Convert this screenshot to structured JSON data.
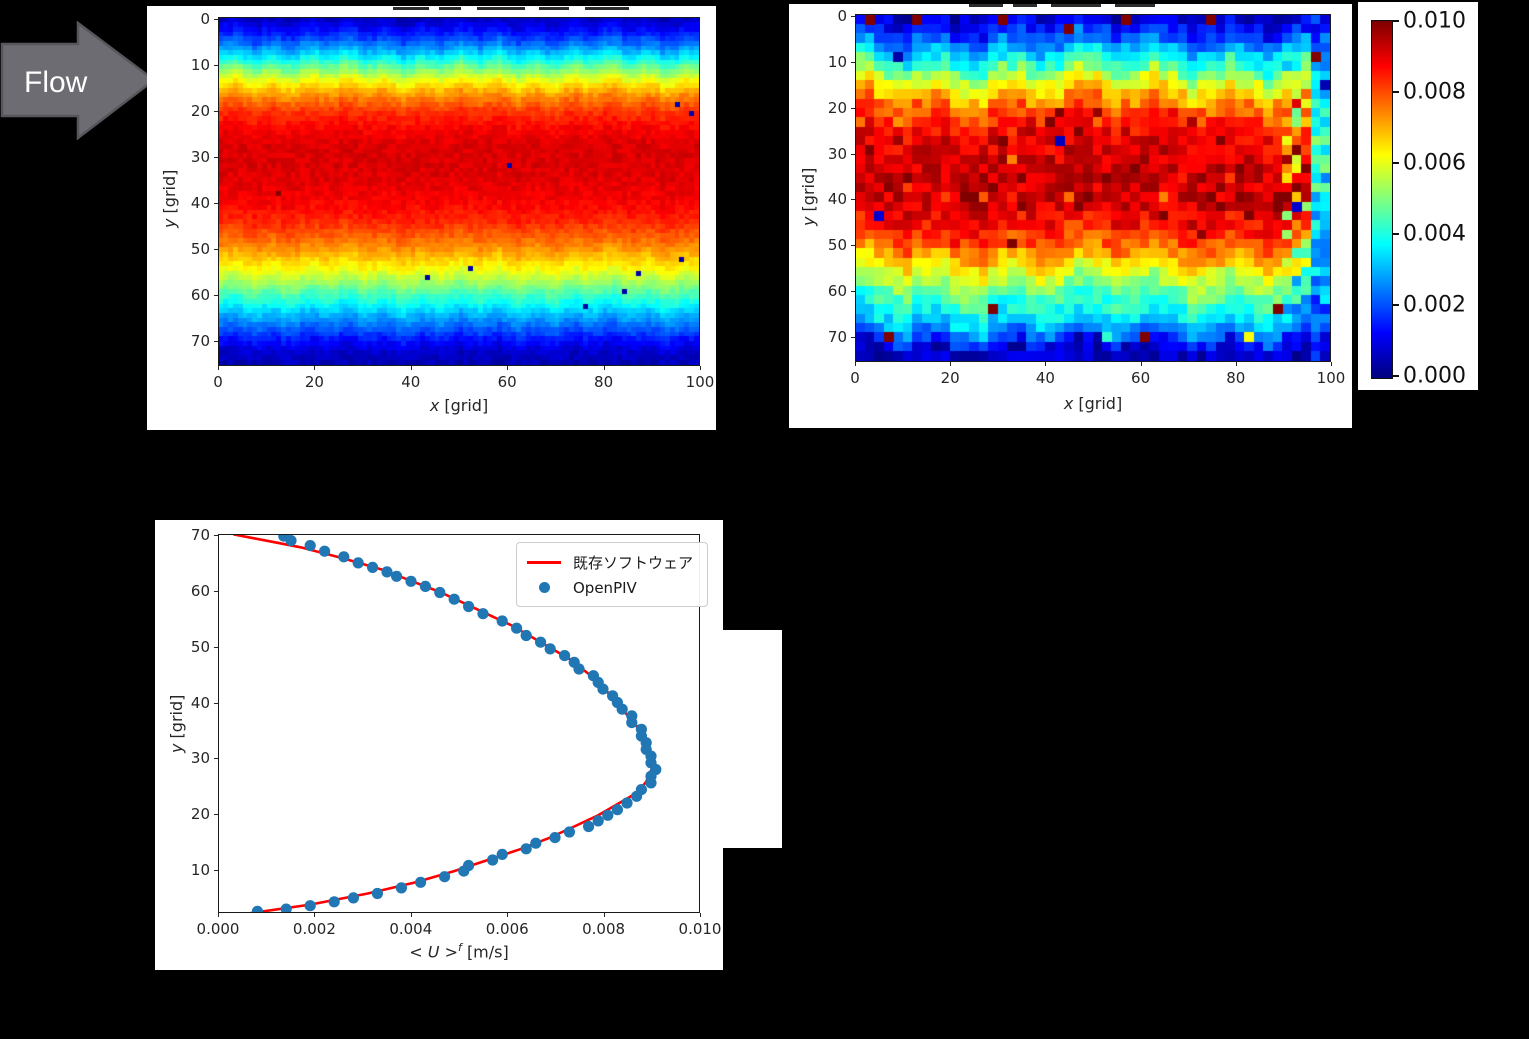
{
  "flow_arrow": {
    "label": "Flow"
  },
  "colors": {
    "background": "#000000",
    "panel": "#ffffff",
    "axis_text": "#262626",
    "arrow_fill": "#6c6c72",
    "arrow_stroke": "#56565c",
    "line_red": "#ff0000",
    "scatter_blue": "#2077b4",
    "colormap": "jet"
  },
  "chart_data": [
    {
      "id": "heatmap-left",
      "type": "heatmap",
      "xlabel_parts": [
        {
          "t": "x",
          "i": true
        },
        {
          "t": " [grid]",
          "i": false
        }
      ],
      "ylabel_parts": [
        {
          "t": "y",
          "i": true
        },
        {
          "t": " [grid]",
          "i": false
        }
      ],
      "x_ticks": [
        0,
        20,
        40,
        60,
        80,
        100
      ],
      "y_ticks": [
        0,
        10,
        20,
        30,
        40,
        50,
        60,
        70
      ],
      "x_range": [
        0,
        100
      ],
      "y_range": [
        0,
        75
      ],
      "vmin": 0,
      "vmax": 0.01,
      "colormap": "jet",
      "grid_cols": 100,
      "grid_rows": 74,
      "seed": 7,
      "noise": 0.00023,
      "col_wobble": 0.55,
      "profile_y": [
        0,
        1,
        2,
        3,
        4,
        5,
        6,
        7,
        8,
        9,
        10,
        12,
        14,
        16,
        18,
        20,
        24,
        28,
        32,
        36,
        40,
        44,
        48,
        50,
        52,
        54,
        56,
        58,
        60,
        62,
        64,
        66,
        68,
        70,
        72,
        75
      ],
      "profile_v": [
        0.0006,
        0.0008,
        0.0011,
        0.0014,
        0.0017,
        0.0021,
        0.0025,
        0.0029,
        0.0034,
        0.0039,
        0.0044,
        0.0054,
        0.0063,
        0.0071,
        0.0077,
        0.0082,
        0.0088,
        0.0091,
        0.0091,
        0.009,
        0.0088,
        0.0084,
        0.0077,
        0.0073,
        0.0068,
        0.0063,
        0.0057,
        0.0051,
        0.0044,
        0.0038,
        0.0031,
        0.0025,
        0.0019,
        0.0013,
        0.0008,
        0.0005
      ],
      "outliers": [
        [
          61,
          32,
          0.0004
        ],
        [
          53,
          54,
          0.0004
        ],
        [
          43,
          56.5,
          0.0004
        ],
        [
          97,
          52,
          0.0004
        ],
        [
          88,
          55.5,
          0.0004
        ],
        [
          85,
          59.5,
          0.0004
        ],
        [
          77,
          62.5,
          0.0004
        ],
        [
          96,
          18,
          0.0004
        ],
        [
          99,
          21,
          0.0004
        ],
        [
          12,
          37.5,
          0.0103
        ]
      ]
    },
    {
      "id": "heatmap-right",
      "type": "heatmap",
      "xlabel_parts": [
        {
          "t": "x",
          "i": true
        },
        {
          "t": " [grid]",
          "i": false
        }
      ],
      "ylabel_parts": [
        {
          "t": "y",
          "i": true
        },
        {
          "t": " [grid]",
          "i": false
        }
      ],
      "x_ticks": [
        0,
        20,
        40,
        60,
        80,
        100
      ],
      "y_ticks": [
        0,
        10,
        20,
        30,
        40,
        50,
        60,
        70
      ],
      "x_range": [
        0,
        100
      ],
      "y_range": [
        0,
        75
      ],
      "vmin": 0,
      "vmax": 0.01,
      "colormap": "jet",
      "grid_cols": 50,
      "grid_rows": 37,
      "seed": 12,
      "noise": 0.0006,
      "col_wobble": 1.5,
      "speckle": {
        "p": 0.08,
        "amp": 0.0012,
        "min": 0.0078
      },
      "edge_cols": 2,
      "profile_y": [
        0,
        2,
        4,
        6,
        8,
        10,
        12,
        14,
        16,
        18,
        20,
        24,
        28,
        32,
        36,
        40,
        44,
        48,
        50,
        52,
        54,
        56,
        58,
        60,
        62,
        64,
        66,
        68,
        70,
        71,
        72,
        75
      ],
      "profile_v": [
        0.0007,
        0.0012,
        0.0018,
        0.0025,
        0.0032,
        0.004,
        0.0049,
        0.0057,
        0.0065,
        0.0072,
        0.0078,
        0.0086,
        0.009,
        0.0092,
        0.0093,
        0.0092,
        0.0089,
        0.0082,
        0.0078,
        0.0072,
        0.0066,
        0.006,
        0.0054,
        0.0048,
        0.0043,
        0.0039,
        0.0034,
        0.0028,
        0.002,
        0.0014,
        0.0008,
        0.0006
      ],
      "outliers": [
        [
          3,
          0,
          0.0105
        ],
        [
          13,
          0,
          0.0105
        ],
        [
          30,
          1,
          0.0105
        ],
        [
          57,
          0,
          0.0105
        ],
        [
          75,
          1,
          0.0105
        ],
        [
          97,
          8,
          0.0105
        ],
        [
          45,
          3,
          0.0105
        ],
        [
          28,
          64,
          0.0105
        ],
        [
          90,
          65,
          0.0105
        ],
        [
          6,
          71,
          0.0105
        ],
        [
          62,
          71,
          0.0105
        ],
        [
          89,
          40,
          0.01
        ],
        [
          91,
          39,
          0.01
        ],
        [
          90,
          41,
          0.01
        ],
        [
          30,
          27,
          0.0101
        ],
        [
          42,
          28,
          0.0006
        ],
        [
          8,
          8,
          0.0004
        ],
        [
          5,
          44,
          0.0008
        ],
        [
          93,
          41,
          0.0008
        ],
        [
          84,
          70,
          0.0062
        ],
        [
          53,
          70,
          0.0042
        ],
        [
          36,
          67,
          0.0032
        ],
        [
          97,
          30,
          0.004
        ],
        [
          98,
          35,
          0.0035
        ],
        [
          99,
          14,
          0.0005
        ]
      ]
    },
    {
      "id": "colorbar",
      "type": "colorbar",
      "vmin": 0,
      "vmax": 0.01,
      "colormap": "jet",
      "tick_labels": [
        "0.010",
        "0.008",
        "0.006",
        "0.004",
        "0.002",
        "0.000"
      ]
    },
    {
      "id": "velocity-profile",
      "type": "line+scatter",
      "xlabel_parts": [
        {
          "t": "< ",
          "i": false
        },
        {
          "t": "U",
          "i": true
        },
        {
          "t": " >",
          "i": false
        },
        {
          "t": "f",
          "i": true,
          "sup": true
        },
        {
          "t": " [m/s]",
          "i": false
        }
      ],
      "ylabel_parts": [
        {
          "t": "y",
          "i": true
        },
        {
          "t": " [grid]",
          "i": false
        }
      ],
      "x_tick_labels": [
        "0.000",
        "0.002",
        "0.004",
        "0.006",
        "0.008",
        "0.010"
      ],
      "x_tick_values": [
        0,
        0.002,
        0.004,
        0.006,
        0.008,
        0.01
      ],
      "y_ticks": [
        10,
        20,
        30,
        40,
        50,
        60,
        70
      ],
      "xlim": [
        0,
        0.01
      ],
      "ylim": [
        2.68,
        70.2
      ],
      "legend_position": "upper right",
      "series": [
        {
          "name": "既存ソフトウェア",
          "type": "line",
          "color": "#ff0000",
          "y": [
            70.3,
            69,
            68,
            66,
            64,
            62,
            60,
            58,
            56,
            54,
            52,
            50,
            48,
            46,
            44,
            42,
            40,
            38,
            36,
            34,
            32,
            30,
            29,
            28,
            26,
            24,
            22,
            20,
            18,
            16,
            14,
            12,
            10,
            8,
            6,
            4,
            2.4
          ],
          "u": [
            0.0003,
            0.0011,
            0.0017,
            0.0026,
            0.0034,
            0.004,
            0.0046,
            0.0051,
            0.0056,
            0.0061,
            0.0065,
            0.0069,
            0.0073,
            0.0076,
            0.0079,
            0.0081,
            0.0083,
            0.0085,
            0.0087,
            0.0088,
            0.0089,
            0.009,
            0.00905,
            0.009,
            0.0089,
            0.0087,
            0.0083,
            0.0079,
            0.0074,
            0.0069,
            0.0063,
            0.0056,
            0.0049,
            0.0041,
            0.0031,
            0.0019,
            0.0006
          ]
        },
        {
          "name": "OpenPIV",
          "type": "scatter",
          "color": "#2077b4",
          "y": [
            70,
            69.2,
            68.3,
            67.3,
            66.3,
            65.2,
            64.4,
            63.6,
            62.8,
            61.9,
            61,
            59.9,
            58.7,
            57.4,
            56.1,
            54.8,
            53.5,
            52.2,
            51,
            49.8,
            48.6,
            47.4,
            46.2,
            45,
            43.8,
            42.6,
            41.4,
            40.2,
            39,
            37.8,
            36.6,
            35.4,
            34.2,
            33,
            31.8,
            30.6,
            29.4,
            28.2,
            27,
            25.8,
            24.6,
            23.4,
            22.2,
            21,
            20,
            19,
            18,
            17,
            16,
            15,
            14,
            13,
            12,
            11,
            10,
            9,
            8,
            7,
            6,
            5.2,
            4.5,
            3.8,
            3.2,
            2.8
          ],
          "u": [
            0.00135,
            0.0015,
            0.0019,
            0.0022,
            0.0026,
            0.0029,
            0.0032,
            0.0035,
            0.0037,
            0.004,
            0.0043,
            0.0046,
            0.0049,
            0.0052,
            0.0055,
            0.0059,
            0.0062,
            0.0064,
            0.0067,
            0.0069,
            0.0072,
            0.0074,
            0.0075,
            0.0078,
            0.0079,
            0.008,
            0.0082,
            0.0083,
            0.0084,
            0.0086,
            0.0086,
            0.0088,
            0.0088,
            0.0089,
            0.0089,
            0.009,
            0.009,
            0.0091,
            0.009,
            0.009,
            0.0088,
            0.0087,
            0.0085,
            0.0083,
            0.0081,
            0.0079,
            0.0077,
            0.0073,
            0.007,
            0.0066,
            0.0064,
            0.0059,
            0.0057,
            0.0052,
            0.0051,
            0.0047,
            0.0042,
            0.0038,
            0.0033,
            0.0028,
            0.0024,
            0.0019,
            0.0014,
            0.0008
          ]
        }
      ]
    }
  ]
}
